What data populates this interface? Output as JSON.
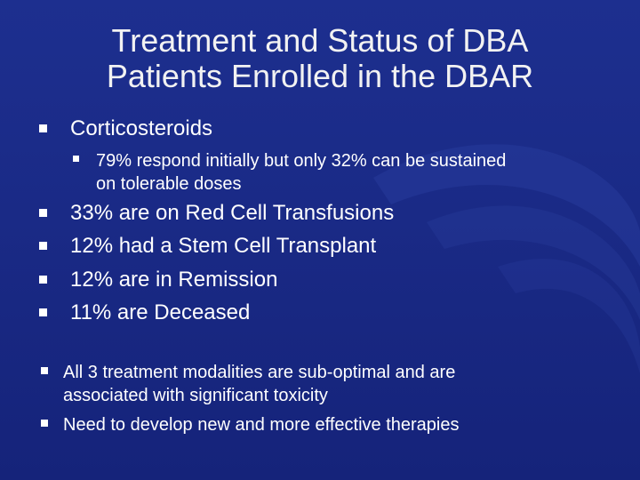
{
  "slide": {
    "title_line1": "Treatment and Status of DBA",
    "title_line2": "Patients Enrolled in the DBAR",
    "bullets": [
      "Corticosteroids",
      "79% respond initially but only 32% can be sustained",
      "on tolerable doses",
      "33% are on Red Cell Transfusions",
      "12% had a Stem Cell Transplant",
      "12% are in Remission",
      "11% are Deceased",
      "All 3 treatment modalities are sub-optimal and are",
      "associated with significant toxicity",
      "Need to develop new and more effective therapies"
    ]
  },
  "colors": {
    "background": "#1a2a86",
    "text": "#ffffff",
    "swoosh": "#2a3f9f"
  }
}
